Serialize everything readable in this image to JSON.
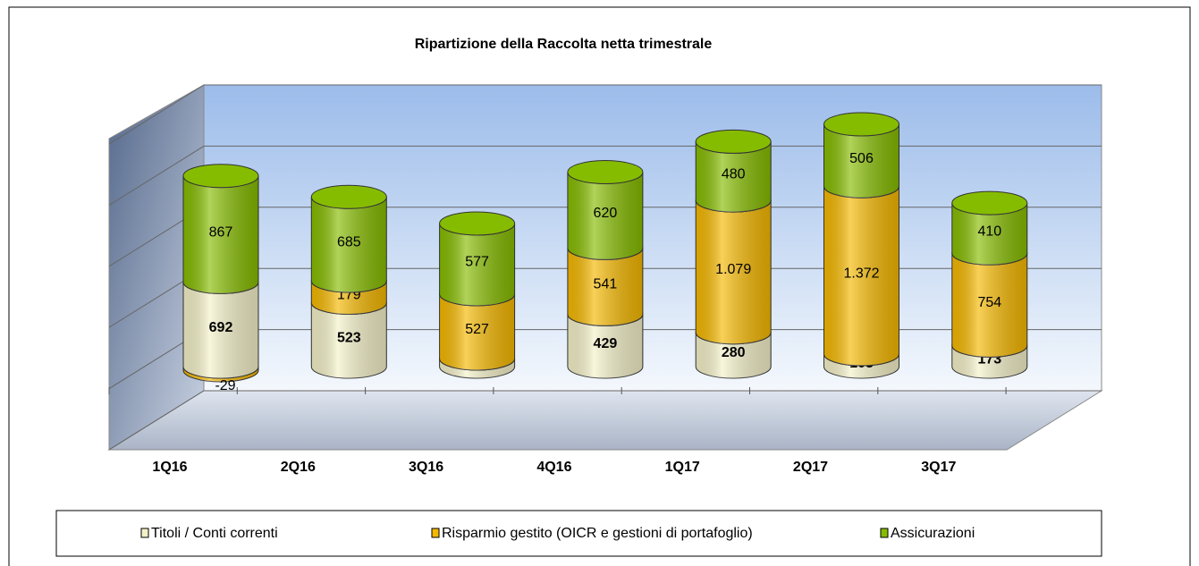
{
  "chart_data": {
    "type": "bar",
    "stacked": true,
    "title": "Ripartizione della Raccolta netta trimestrale",
    "categories": [
      "1Q16",
      "2Q16",
      "3Q16",
      "4Q16",
      "1Q17",
      "2Q17",
      "3Q17"
    ],
    "series": [
      {
        "name": "Titoli / Conti correnti",
        "color": "#f4f1c8",
        "values": [
          692,
          523,
          66,
          429,
          280,
          103,
          173
        ]
      },
      {
        "name": "Risparmio gestito (OICR e  gestioni di portafoglio)",
        "color": "#f5b800",
        "values": [
          -29,
          179,
          527,
          541,
          1079,
          1372,
          754
        ],
        "value_labels": [
          "-29",
          "179",
          "527",
          "541",
          "1.079",
          "1.372",
          "754"
        ]
      },
      {
        "name": "Assicurazioni",
        "color": "#86bc00",
        "values": [
          867,
          685,
          577,
          620,
          480,
          506,
          410
        ]
      }
    ],
    "ylim": [
      0,
      2500
    ],
    "yticks": [
      0,
      500,
      1000,
      1500,
      2000,
      2500
    ],
    "grid": true
  }
}
